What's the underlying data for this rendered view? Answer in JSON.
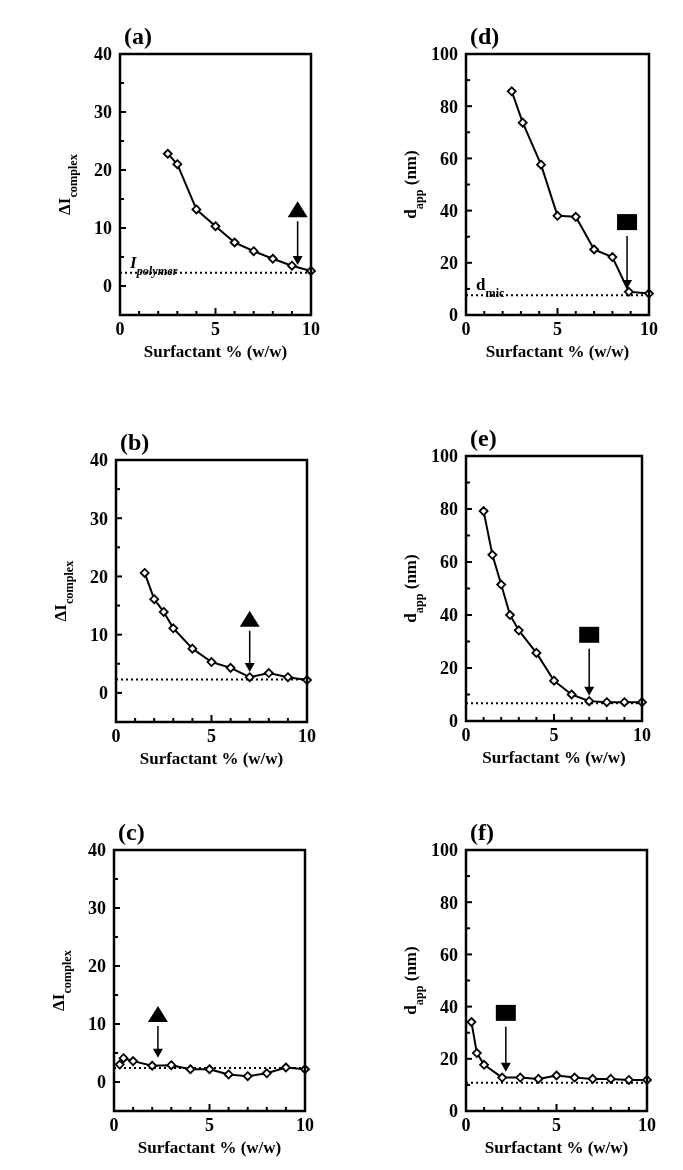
{
  "chart_data": [
    {
      "type": "line",
      "title": "(a)",
      "xlabel": "Surfactant % (w/w)",
      "ylabel": "ΔI$_{complex}$",
      "marker": "diamond",
      "line_style": "solid",
      "grid": false,
      "xlim": [
        0,
        10
      ],
      "ylim": [
        -5,
        40
      ],
      "xticks": [
        0,
        {
          "value": 1,
          "label": null
        },
        {
          "value": 2,
          "label": null
        },
        {
          "value": 3,
          "label": null
        },
        {
          "value": 4,
          "label": null
        },
        5,
        {
          "value": 6,
          "label": null
        },
        {
          "value": 7,
          "label": null
        },
        {
          "value": 8,
          "label": null
        },
        {
          "value": 9,
          "label": null
        },
        10
      ],
      "yticks": [
        0,
        {
          "value": 5,
          "label": null
        },
        10,
        {
          "value": 15,
          "label": null
        },
        20,
        {
          "value": 25,
          "label": null
        },
        30,
        {
          "value": 35,
          "label": null
        },
        40
      ],
      "x": [
        2.5,
        3.0,
        4.0,
        5.0,
        6.0,
        7.0,
        8.0,
        9.0,
        10.0
      ],
      "series": [
        {
          "color": "#000000",
          "values": [
            22.8,
            21.0,
            13.2,
            10.3,
            7.5,
            6.0,
            4.7,
            3.5,
            2.6
          ]
        }
      ],
      "ref_lines": [
        {
          "axis": "y",
          "value": 2.3,
          "label": "I$_{polymer}$",
          "line_style": "dotted"
        }
      ]
    },
    {
      "type": "line",
      "title": "(d)",
      "xlabel": "Surfactant % (w/w)",
      "ylabel": "d$_{app}$ (nm)",
      "marker": "diamond",
      "line_style": "solid",
      "grid": false,
      "xlim": [
        0,
        10
      ],
      "ylim": [
        0,
        100
      ],
      "xticks": [
        0,
        {
          "value": 1,
          "label": null
        },
        {
          "value": 2,
          "label": null
        },
        {
          "value": 3,
          "label": null
        },
        {
          "value": 4,
          "label": null
        },
        5,
        {
          "value": 6,
          "label": null
        },
        {
          "value": 7,
          "label": null
        },
        {
          "value": 8,
          "label": null
        },
        {
          "value": 9,
          "label": null
        },
        10
      ],
      "yticks": [
        0,
        {
          "value": 10,
          "label": null
        },
        20,
        {
          "value": 30,
          "label": null
        },
        40,
        {
          "value": 50,
          "label": null
        },
        60,
        {
          "value": 70,
          "label": null
        },
        80,
        {
          "value": 90,
          "label": null
        },
        100
      ],
      "x": [
        2.5,
        3.1,
        4.1,
        5.0,
        6.0,
        7.0,
        8.0,
        8.9,
        10.0
      ],
      "series": [
        {
          "color": "#000000",
          "values": [
            85.7,
            73.7,
            57.6,
            38.0,
            37.6,
            25.1,
            22.2,
            8.9,
            8.2
          ]
        }
      ],
      "ref_lines": [
        {
          "axis": "y",
          "value": 7.6,
          "label": "d$_{mic}$",
          "line_style": "dotted"
        }
      ]
    },
    {
      "type": "line",
      "title": "(b)",
      "xlabel": "Surfactant % (w/w)",
      "ylabel": "ΔI$_{complex}$",
      "marker": "diamond",
      "line_style": "solid",
      "grid": false,
      "xlim": [
        0,
        10
      ],
      "ylim": [
        -5,
        40
      ],
      "xticks": [
        0,
        {
          "value": 1,
          "label": null
        },
        {
          "value": 2,
          "label": null
        },
        {
          "value": 3,
          "label": null
        },
        {
          "value": 4,
          "label": null
        },
        5,
        {
          "value": 6,
          "label": null
        },
        {
          "value": 7,
          "label": null
        },
        {
          "value": 8,
          "label": null
        },
        {
          "value": 9,
          "label": null
        },
        10
      ],
      "yticks": [
        0,
        {
          "value": 5,
          "label": null
        },
        10,
        {
          "value": 15,
          "label": null
        },
        20,
        {
          "value": 25,
          "label": null
        },
        30,
        {
          "value": 35,
          "label": null
        },
        40
      ],
      "x": [
        1.5,
        2.0,
        2.5,
        3.0,
        4.0,
        5.0,
        6.0,
        7.0,
        8.0,
        9.0,
        10.0
      ],
      "series": [
        {
          "color": "#000000",
          "values": [
            20.6,
            16.1,
            13.9,
            11.1,
            7.6,
            5.3,
            4.3,
            2.7,
            3.4,
            2.7,
            2.2
          ]
        }
      ],
      "ref_lines": [
        {
          "axis": "y",
          "value": 2.3,
          "line_style": "dotted"
        }
      ]
    },
    {
      "type": "line",
      "title": "(e)",
      "xlabel": "Surfactant % (w/w)",
      "ylabel": "d$_{app}$ (nm)",
      "marker": "diamond",
      "line_style": "solid",
      "grid": false,
      "xlim": [
        0,
        10
      ],
      "ylim": [
        0,
        100
      ],
      "xticks": [
        0,
        {
          "value": 1,
          "label": null
        },
        {
          "value": 2,
          "label": null
        },
        {
          "value": 3,
          "label": null
        },
        {
          "value": 4,
          "label": null
        },
        5,
        {
          "value": 6,
          "label": null
        },
        {
          "value": 7,
          "label": null
        },
        {
          "value": 8,
          "label": null
        },
        {
          "value": 9,
          "label": null
        },
        10
      ],
      "yticks": [
        0,
        {
          "value": 10,
          "label": null
        },
        20,
        {
          "value": 30,
          "label": null
        },
        40,
        {
          "value": 50,
          "label": null
        },
        60,
        {
          "value": 70,
          "label": null
        },
        80,
        {
          "value": 90,
          "label": null
        },
        100
      ],
      "x": [
        1.0,
        1.5,
        2.0,
        2.5,
        3.0,
        4.0,
        5.0,
        6.0,
        7.0,
        8.0,
        9.0,
        10.0
      ],
      "series": [
        {
          "color": "#000000",
          "values": [
            79.2,
            62.7,
            51.5,
            40.0,
            34.2,
            25.7,
            15.2,
            10.0,
            7.5,
            7.1,
            7.1,
            7.1
          ]
        }
      ],
      "ref_lines": [
        {
          "axis": "y",
          "value": 6.7,
          "line_style": "dotted"
        }
      ]
    },
    {
      "type": "line",
      "title": "(c)",
      "xlabel": "Surfactant % (w/w)",
      "ylabel": "ΔI$_{complex}$",
      "marker": "diamond",
      "line_style": "solid",
      "grid": false,
      "xlim": [
        0,
        10
      ],
      "ylim": [
        -5,
        40
      ],
      "xticks": [
        0,
        {
          "value": 1,
          "label": null
        },
        {
          "value": 2,
          "label": null
        },
        {
          "value": 3,
          "label": null
        },
        {
          "value": 4,
          "label": null
        },
        5,
        {
          "value": 6,
          "label": null
        },
        {
          "value": 7,
          "label": null
        },
        {
          "value": 8,
          "label": null
        },
        {
          "value": 9,
          "label": null
        },
        10
      ],
      "yticks": [
        0,
        {
          "value": 5,
          "label": null
        },
        10,
        {
          "value": 15,
          "label": null
        },
        20,
        {
          "value": 25,
          "label": null
        },
        30,
        {
          "value": 35,
          "label": null
        },
        40
      ],
      "x": [
        0.3,
        0.5,
        1.0,
        2.0,
        3.0,
        4.0,
        5.0,
        6.0,
        7.0,
        8.0,
        9.0,
        10.0
      ],
      "series": [
        {
          "color": "#000000",
          "values": [
            3.0,
            4.1,
            3.6,
            2.8,
            2.9,
            2.2,
            2.2,
            1.3,
            1.0,
            1.5,
            2.5,
            2.2
          ]
        }
      ],
      "ref_lines": [
        {
          "axis": "y",
          "value": 2.4,
          "line_style": "dotted"
        }
      ]
    },
    {
      "type": "line",
      "title": "(f)",
      "xlabel": "Surfactant % (w/w)",
      "ylabel": "d$_{app}$ (nm)",
      "marker": "diamond",
      "line_style": "solid",
      "grid": false,
      "xlim": [
        0,
        10
      ],
      "ylim": [
        0,
        100
      ],
      "xticks": [
        0,
        {
          "value": 1,
          "label": null
        },
        {
          "value": 2,
          "label": null
        },
        {
          "value": 3,
          "label": null
        },
        {
          "value": 4,
          "label": null
        },
        5,
        {
          "value": 6,
          "label": null
        },
        {
          "value": 7,
          "label": null
        },
        {
          "value": 8,
          "label": null
        },
        {
          "value": 9,
          "label": null
        },
        10
      ],
      "yticks": [
        0,
        {
          "value": 10,
          "label": null
        },
        20,
        {
          "value": 30,
          "label": null
        },
        40,
        {
          "value": 50,
          "label": null
        },
        60,
        {
          "value": 70,
          "label": null
        },
        80,
        {
          "value": 90,
          "label": null
        },
        100
      ],
      "x": [
        0.3,
        0.6,
        1.0,
        2.0,
        3.0,
        4.0,
        5.0,
        6.0,
        7.0,
        8.0,
        9.0,
        10.0
      ],
      "series": [
        {
          "color": "#000000",
          "values": [
            34.1,
            22.2,
            17.7,
            12.8,
            12.8,
            12.3,
            13.6,
            12.8,
            12.3,
            12.3,
            11.9,
            11.9
          ]
        }
      ],
      "ref_lines": [
        {
          "axis": "y",
          "value": 10.8,
          "line_style": "dotted"
        }
      ]
    }
  ]
}
